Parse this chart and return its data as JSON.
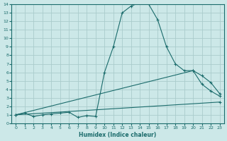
{
  "xlabel": "Humidex (Indice chaleur)",
  "background_color": "#cce8e8",
  "grid_color": "#aacccc",
  "line_color": "#1a6b6b",
  "xlim": [
    -0.5,
    23.5
  ],
  "ylim": [
    0,
    14
  ],
  "xticks": [
    0,
    1,
    2,
    3,
    4,
    5,
    6,
    7,
    8,
    9,
    10,
    11,
    12,
    13,
    14,
    15,
    16,
    17,
    18,
    19,
    20,
    21,
    22,
    23
  ],
  "yticks": [
    0,
    1,
    2,
    3,
    4,
    5,
    6,
    7,
    8,
    9,
    10,
    11,
    12,
    13,
    14
  ],
  "line1_x": [
    0,
    1,
    2,
    3,
    4,
    5,
    6,
    7,
    8,
    9,
    10,
    11,
    12,
    13,
    14,
    15,
    16,
    17,
    18,
    19,
    20,
    21,
    22,
    23
  ],
  "line1_y": [
    1.0,
    1.2,
    0.8,
    1.0,
    1.1,
    1.2,
    1.3,
    0.7,
    0.9,
    0.8,
    6.0,
    9.0,
    13.0,
    13.8,
    14.2,
    14.0,
    12.2,
    9.0,
    7.0,
    6.2,
    6.2,
    4.6,
    3.8,
    3.2
  ],
  "line2_x": [
    0,
    20,
    21,
    22,
    23
  ],
  "line2_y": [
    1.0,
    6.2,
    5.6,
    4.8,
    3.5
  ],
  "line3_x": [
    0,
    23
  ],
  "line3_y": [
    1.0,
    2.5
  ]
}
